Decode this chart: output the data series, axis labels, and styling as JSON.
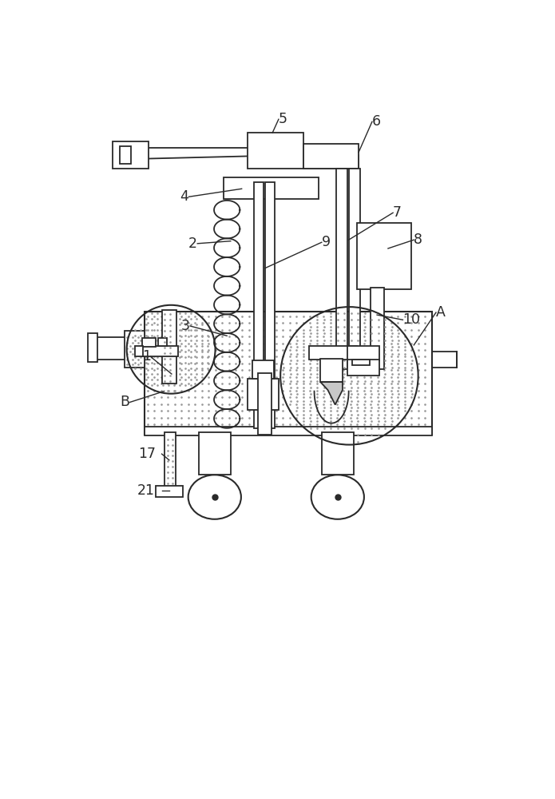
{
  "bg_color": "#ffffff",
  "lc": "#2a2a2a",
  "figsize": [
    6.95,
    10.0
  ],
  "dpi": 100
}
